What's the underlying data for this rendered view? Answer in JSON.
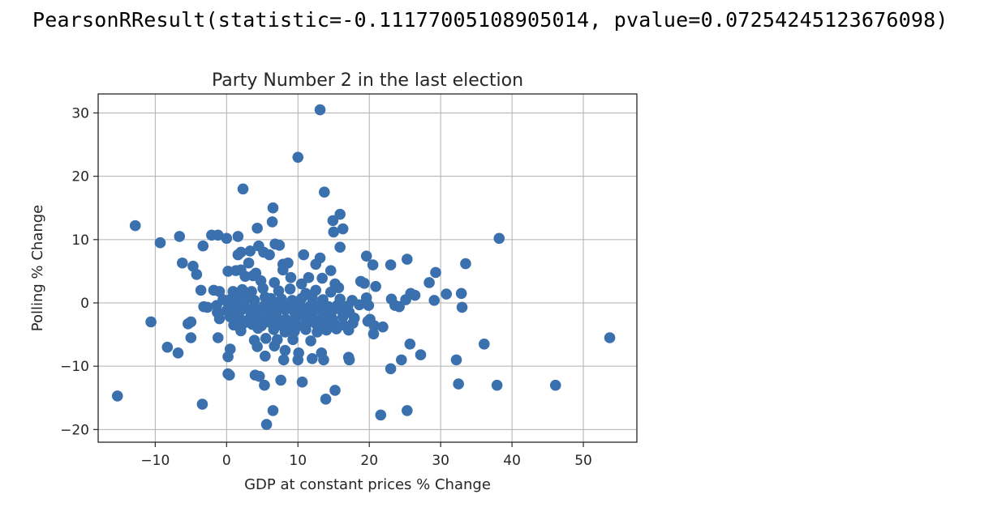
{
  "output": {
    "result_text": "PearsonRResult(statistic=-0.11177005108905014, pvalue=0.07254245123676098)"
  },
  "chart_data": {
    "type": "scatter",
    "title": "Party Number 2 in the last election",
    "xlabel": "GDP at constant prices % Change",
    "ylabel": "Polling % Change",
    "xlim": [
      -18,
      57.5
    ],
    "ylim": [
      -22,
      33
    ],
    "xticks": [
      -10,
      0,
      10,
      20,
      30,
      40,
      50
    ],
    "xtick_labels": [
      "−10",
      "0",
      "10",
      "20",
      "30",
      "40",
      "50"
    ],
    "yticks": [
      -20,
      -10,
      0,
      10,
      20,
      30
    ],
    "ytick_labels": [
      "−20",
      "−10",
      "0",
      "10",
      "20",
      "30"
    ],
    "grid": true,
    "marker_color": "#3a70ad",
    "points": [
      [
        13.1,
        30.5
      ],
      [
        10.0,
        23.0
      ],
      [
        2.3,
        18.0
      ],
      [
        13.7,
        17.5
      ],
      [
        6.5,
        15.0
      ],
      [
        15.9,
        14.0
      ],
      [
        14.9,
        13.0
      ],
      [
        6.4,
        12.8
      ],
      [
        -12.8,
        12.2
      ],
      [
        4.3,
        11.8
      ],
      [
        16.3,
        11.7
      ],
      [
        15.0,
        11.2
      ],
      [
        -6.6,
        10.5
      ],
      [
        -2.1,
        10.7
      ],
      [
        -1.2,
        10.7
      ],
      [
        1.6,
        10.5
      ],
      [
        0.0,
        10.2
      ],
      [
        38.2,
        10.2
      ],
      [
        -9.3,
        9.5
      ],
      [
        -3.3,
        9.0
      ],
      [
        4.5,
        9.0
      ],
      [
        6.8,
        9.3
      ],
      [
        7.4,
        9.1
      ],
      [
        15.9,
        8.8
      ],
      [
        2.0,
        8.0
      ],
      [
        3.3,
        8.2
      ],
      [
        5.2,
        8.0
      ],
      [
        6.0,
        7.6
      ],
      [
        10.8,
        7.6
      ],
      [
        13.1,
        7.1
      ],
      [
        19.6,
        7.4
      ],
      [
        25.3,
        6.9
      ],
      [
        1.6,
        7.6
      ],
      [
        -6.2,
        6.3
      ],
      [
        -4.7,
        5.8
      ],
      [
        3.1,
        6.3
      ],
      [
        7.9,
        6.1
      ],
      [
        8.6,
        6.3
      ],
      [
        12.5,
        6.1
      ],
      [
        20.5,
        6.0
      ],
      [
        23.0,
        6.0
      ],
      [
        33.5,
        6.2
      ],
      [
        0.2,
        5.0
      ],
      [
        1.3,
        5.1
      ],
      [
        2.0,
        5.2
      ],
      [
        4.1,
        4.7
      ],
      [
        7.9,
        5.2
      ],
      [
        14.6,
        5.1
      ],
      [
        29.3,
        4.8
      ],
      [
        -4.2,
        4.5
      ],
      [
        2.6,
        4.2
      ],
      [
        3.7,
        4.3
      ],
      [
        9.0,
        4.0
      ],
      [
        11.5,
        4.0
      ],
      [
        13.4,
        3.9
      ],
      [
        4.8,
        3.5
      ],
      [
        6.7,
        3.2
      ],
      [
        10.5,
        3.0
      ],
      [
        15.2,
        3.0
      ],
      [
        18.8,
        3.4
      ],
      [
        20.9,
        2.6
      ],
      [
        28.4,
        3.2
      ],
      [
        -3.6,
        2.0
      ],
      [
        -1.8,
        2.0
      ],
      [
        -1.0,
        1.8
      ],
      [
        0.9,
        1.8
      ],
      [
        2.2,
        2.1
      ],
      [
        3.5,
        1.8
      ],
      [
        5.1,
        2.3
      ],
      [
        7.3,
        1.9
      ],
      [
        8.9,
        2.2
      ],
      [
        11.1,
        1.5
      ],
      [
        12.5,
        2.0
      ],
      [
        14.6,
        1.7
      ],
      [
        15.7,
        2.4
      ],
      [
        19.3,
        3.1
      ],
      [
        25.8,
        1.5
      ],
      [
        26.4,
        1.2
      ],
      [
        30.8,
        1.4
      ],
      [
        32.9,
        1.5
      ],
      [
        -0.5,
        0.5
      ],
      [
        0.6,
        0.6
      ],
      [
        1.5,
        0.8
      ],
      [
        2.8,
        0.7
      ],
      [
        3.9,
        0.4
      ],
      [
        5.4,
        0.9
      ],
      [
        6.2,
        0.7
      ],
      [
        7.7,
        0.6
      ],
      [
        9.2,
        0.4
      ],
      [
        10.5,
        0.7
      ],
      [
        12.0,
        0.8
      ],
      [
        13.5,
        0.5
      ],
      [
        15.9,
        0.6
      ],
      [
        17.6,
        0.4
      ],
      [
        19.6,
        0.8
      ],
      [
        23.1,
        0.6
      ],
      [
        25.1,
        0.5
      ],
      [
        29.1,
        0.4
      ],
      [
        -3.2,
        -0.6
      ],
      [
        -2.7,
        -0.7
      ],
      [
        -1.4,
        -0.4
      ],
      [
        0.3,
        -0.4
      ],
      [
        1.4,
        -0.3
      ],
      [
        2.5,
        -0.5
      ],
      [
        3.9,
        -0.6
      ],
      [
        5.3,
        -0.4
      ],
      [
        6.4,
        -0.2
      ],
      [
        7.8,
        -0.5
      ],
      [
        9.0,
        -0.3
      ],
      [
        10.4,
        -0.6
      ],
      [
        11.7,
        -0.5
      ],
      [
        13.0,
        -0.4
      ],
      [
        14.3,
        -0.6
      ],
      [
        15.5,
        -0.4
      ],
      [
        17.0,
        -0.5
      ],
      [
        18.6,
        -0.3
      ],
      [
        19.9,
        -0.4
      ],
      [
        23.6,
        -0.4
      ],
      [
        24.2,
        -0.6
      ],
      [
        33.0,
        -0.7
      ],
      [
        -1.3,
        -1.5
      ],
      [
        0.0,
        -1.2
      ],
      [
        1.2,
        -1.4
      ],
      [
        2.1,
        -1.1
      ],
      [
        3.4,
        -1.5
      ],
      [
        4.6,
        -1.3
      ],
      [
        5.8,
        -1.2
      ],
      [
        6.9,
        -1.5
      ],
      [
        8.2,
        -1.1
      ],
      [
        9.5,
        -1.4
      ],
      [
        10.8,
        -1.3
      ],
      [
        12.1,
        -1.5
      ],
      [
        13.4,
        -1.2
      ],
      [
        14.7,
        -1.4
      ],
      [
        16.0,
        -1.1
      ],
      [
        17.2,
        -1.5
      ],
      [
        -1.0,
        -2.5
      ],
      [
        0.5,
        -2.2
      ],
      [
        1.8,
        -2.4
      ],
      [
        3.1,
        -2.6
      ],
      [
        4.4,
        -2.3
      ],
      [
        5.7,
        -2.5
      ],
      [
        7.0,
        -2.2
      ],
      [
        8.3,
        -2.6
      ],
      [
        9.6,
        -2.4
      ],
      [
        10.9,
        -2.2
      ],
      [
        12.2,
        -2.6
      ],
      [
        13.5,
        -2.3
      ],
      [
        14.8,
        -2.5
      ],
      [
        16.3,
        -2.2
      ],
      [
        17.9,
        -2.4
      ],
      [
        20.1,
        -2.6
      ],
      [
        -10.6,
        -3.0
      ],
      [
        -5.4,
        -3.3
      ],
      [
        -5.0,
        -3.0
      ],
      [
        1.0,
        -3.5
      ],
      [
        2.4,
        -3.2
      ],
      [
        3.6,
        -3.4
      ],
      [
        4.9,
        -3.6
      ],
      [
        6.1,
        -3.1
      ],
      [
        7.5,
        -3.5
      ],
      [
        8.7,
        -3.3
      ],
      [
        10.0,
        -3.6
      ],
      [
        11.3,
        -3.2
      ],
      [
        12.6,
        -3.4
      ],
      [
        13.8,
        -3.6
      ],
      [
        15.1,
        -3.3
      ],
      [
        16.4,
        -3.5
      ],
      [
        17.7,
        -3.2
      ],
      [
        19.8,
        -2.9
      ],
      [
        20.7,
        -3.6
      ],
      [
        21.9,
        -3.8
      ],
      [
        2.0,
        -4.4
      ],
      [
        4.4,
        -4.0
      ],
      [
        6.6,
        -4.2
      ],
      [
        8.2,
        -4.6
      ],
      [
        9.5,
        -4.5
      ],
      [
        11.1,
        -4.2
      ],
      [
        12.7,
        -4.6
      ],
      [
        14.0,
        -4.3
      ],
      [
        15.4,
        -4.1
      ],
      [
        17.1,
        -4.3
      ],
      [
        20.6,
        -4.9
      ],
      [
        -5.0,
        -5.5
      ],
      [
        -1.2,
        -5.5
      ],
      [
        3.9,
        -5.9
      ],
      [
        5.5,
        -5.6
      ],
      [
        7.1,
        -5.8
      ],
      [
        9.3,
        -5.8
      ],
      [
        11.8,
        -6.0
      ],
      [
        25.7,
        -6.5
      ],
      [
        36.1,
        -6.5
      ],
      [
        53.7,
        -5.5
      ],
      [
        -8.3,
        -7.0
      ],
      [
        -6.8,
        -7.9
      ],
      [
        0.5,
        -7.3
      ],
      [
        4.3,
        -6.9
      ],
      [
        6.7,
        -6.8
      ],
      [
        8.2,
        -7.5
      ],
      [
        10.1,
        -7.9
      ],
      [
        13.3,
        -7.9
      ],
      [
        27.2,
        -8.2
      ],
      [
        0.2,
        -8.5
      ],
      [
        5.4,
        -8.4
      ],
      [
        8.0,
        -9.0
      ],
      [
        10.0,
        -9.0
      ],
      [
        12.0,
        -8.8
      ],
      [
        13.6,
        -9.0
      ],
      [
        17.1,
        -8.6
      ],
      [
        17.2,
        -9.0
      ],
      [
        24.5,
        -9.0
      ],
      [
        32.2,
        -9.0
      ],
      [
        23.0,
        -10.4
      ],
      [
        0.2,
        -11.2
      ],
      [
        0.4,
        -11.4
      ],
      [
        4.0,
        -11.4
      ],
      [
        4.6,
        -11.6
      ],
      [
        7.6,
        -12.2
      ],
      [
        10.6,
        -12.5
      ],
      [
        5.3,
        -13.0
      ],
      [
        32.5,
        -12.8
      ],
      [
        37.9,
        -13.0
      ],
      [
        46.1,
        -13.0
      ],
      [
        -15.3,
        -14.7
      ],
      [
        15.2,
        -13.8
      ],
      [
        13.9,
        -15.2
      ],
      [
        -3.4,
        -16.0
      ],
      [
        6.5,
        -17.0
      ],
      [
        21.6,
        -17.7
      ],
      [
        25.3,
        -17.0
      ],
      [
        5.6,
        -19.2
      ]
    ]
  }
}
